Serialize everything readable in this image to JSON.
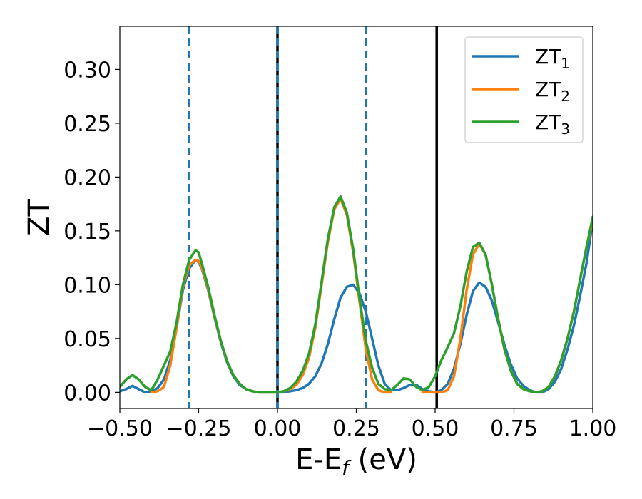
{
  "chart_data": {
    "type": "line",
    "xlabel": {
      "main": "E-E",
      "sub": "f",
      "suffix": " (eV)"
    },
    "ylabel": "ZT",
    "xlim": [
      -0.5,
      1.0
    ],
    "ylim": [
      -0.015,
      0.34
    ],
    "xticks": [
      -0.5,
      -0.25,
      0.0,
      0.25,
      0.5,
      0.75,
      1.0
    ],
    "xtick_labels": [
      "−0.50",
      "−0.25",
      "0.00",
      "0.25",
      "0.50",
      "0.75",
      "1.00"
    ],
    "yticks": [
      0.0,
      0.05,
      0.1,
      0.15,
      0.2,
      0.25,
      0.3
    ],
    "ytick_labels": [
      "0.00",
      "0.05",
      "0.10",
      "0.15",
      "0.20",
      "0.25",
      "0.30"
    ],
    "grid": false,
    "legend_position": "top-right",
    "vlines": [
      {
        "x": -0.28,
        "style": "dashed",
        "color": "#1f77b4"
      },
      {
        "x": 0.0,
        "style": "solid",
        "color": "#000000"
      },
      {
        "x": 0.0,
        "style": "dashed",
        "color": "#1f77b4"
      },
      {
        "x": 0.28,
        "style": "dashed",
        "color": "#1f77b4"
      },
      {
        "x": 0.505,
        "style": "solid",
        "color": "#000000"
      }
    ],
    "series": [
      {
        "name": "ZT",
        "sub": "1",
        "color": "#1f77b4",
        "x": [
          -0.5,
          -0.48,
          -0.46,
          -0.44,
          -0.42,
          -0.4,
          -0.38,
          -0.36,
          -0.34,
          -0.32,
          -0.3,
          -0.28,
          -0.26,
          -0.25,
          -0.24,
          -0.22,
          -0.2,
          -0.18,
          -0.16,
          -0.14,
          -0.12,
          -0.1,
          -0.08,
          -0.06,
          -0.04,
          -0.02,
          0.0,
          0.02,
          0.04,
          0.06,
          0.08,
          0.1,
          0.12,
          0.14,
          0.16,
          0.18,
          0.2,
          0.22,
          0.24,
          0.26,
          0.28,
          0.3,
          0.32,
          0.34,
          0.36,
          0.38,
          0.4,
          0.42,
          0.44,
          0.46,
          0.48,
          0.5,
          0.52,
          0.54,
          0.56,
          0.58,
          0.6,
          0.62,
          0.64,
          0.66,
          0.68,
          0.7,
          0.72,
          0.74,
          0.76,
          0.78,
          0.8,
          0.82,
          0.84,
          0.86,
          0.88,
          0.9,
          0.92,
          0.94,
          0.96,
          0.98,
          1.0
        ],
        "y": [
          0.001,
          0.003,
          0.006,
          0.003,
          0.0,
          0.001,
          0.004,
          0.012,
          0.03,
          0.06,
          0.095,
          0.115,
          0.123,
          0.121,
          0.115,
          0.095,
          0.07,
          0.047,
          0.028,
          0.015,
          0.007,
          0.003,
          0.001,
          0.0,
          0.0,
          0.0,
          0.0,
          0.0,
          0.001,
          0.002,
          0.004,
          0.008,
          0.015,
          0.027,
          0.045,
          0.068,
          0.088,
          0.098,
          0.1,
          0.092,
          0.075,
          0.05,
          0.025,
          0.008,
          0.002,
          0.002,
          0.004,
          0.007,
          0.007,
          0.003,
          0.001,
          0.0,
          0.002,
          0.008,
          0.022,
          0.045,
          0.072,
          0.094,
          0.102,
          0.098,
          0.085,
          0.065,
          0.044,
          0.026,
          0.013,
          0.006,
          0.002,
          0.0,
          0.0,
          0.003,
          0.01,
          0.022,
          0.04,
          0.062,
          0.09,
          0.12,
          0.16
        ]
      },
      {
        "name": "ZT",
        "sub": "2",
        "color": "#ff7f0e",
        "x": [
          -0.5,
          -0.48,
          -0.46,
          -0.44,
          -0.42,
          -0.4,
          -0.38,
          -0.36,
          -0.34,
          -0.32,
          -0.3,
          -0.28,
          -0.26,
          -0.25,
          -0.24,
          -0.22,
          -0.2,
          -0.18,
          -0.16,
          -0.14,
          -0.12,
          -0.1,
          -0.08,
          -0.06,
          -0.04,
          -0.02,
          0.0,
          0.02,
          0.04,
          0.06,
          0.08,
          0.1,
          0.12,
          0.14,
          0.16,
          0.18,
          0.2,
          0.22,
          0.24,
          0.26,
          0.28,
          0.3,
          0.32,
          0.34,
          0.36,
          0.38,
          0.4,
          0.42,
          0.44,
          0.46,
          0.48,
          0.5,
          0.52,
          0.54,
          0.56,
          0.58,
          0.6,
          0.62,
          0.64,
          0.66,
          0.68,
          0.7,
          0.72,
          0.74,
          0.76,
          0.78,
          0.8,
          0.82,
          0.84,
          0.86,
          0.88,
          0.9,
          0.92,
          0.94,
          0.96,
          0.98,
          1.0
        ],
        "y": [
          null,
          null,
          null,
          null,
          null,
          0.0,
          0.001,
          0.005,
          0.025,
          0.06,
          0.098,
          0.118,
          0.123,
          0.122,
          0.116,
          0.096,
          0.071,
          0.048,
          0.029,
          0.016,
          0.008,
          0.003,
          0.001,
          0.0,
          0.0,
          0.0,
          0.0,
          0.001,
          0.003,
          0.007,
          0.016,
          0.032,
          0.06,
          0.1,
          0.14,
          0.17,
          0.18,
          0.165,
          0.13,
          0.085,
          0.04,
          0.012,
          0.002,
          0.0,
          0.0,
          null,
          null,
          null,
          null,
          0.0,
          0.0,
          0.0,
          0.0,
          0.002,
          0.015,
          0.05,
          0.095,
          0.128,
          0.138,
          0.128,
          0.1,
          0.068,
          0.04,
          0.02,
          0.008,
          0.003,
          0.001,
          0.0,
          0.001,
          0.005,
          0.015,
          0.03,
          0.05,
          0.075,
          0.105,
          0.135,
          0.16
        ]
      },
      {
        "name": "ZT",
        "sub": "3",
        "color": "#2ca02c",
        "x": [
          -0.5,
          -0.48,
          -0.46,
          -0.44,
          -0.42,
          -0.4,
          -0.38,
          -0.36,
          -0.34,
          -0.32,
          -0.3,
          -0.28,
          -0.26,
          -0.25,
          -0.24,
          -0.22,
          -0.2,
          -0.18,
          -0.16,
          -0.14,
          -0.12,
          -0.1,
          -0.08,
          -0.06,
          -0.04,
          -0.02,
          0.0,
          0.02,
          0.04,
          0.06,
          0.08,
          0.1,
          0.12,
          0.14,
          0.16,
          0.18,
          0.2,
          0.22,
          0.24,
          0.26,
          0.28,
          0.3,
          0.32,
          0.34,
          0.36,
          0.38,
          0.4,
          0.42,
          0.44,
          0.46,
          0.48,
          0.5,
          0.52,
          0.54,
          0.56,
          0.58,
          0.6,
          0.62,
          0.64,
          0.66,
          0.68,
          0.7,
          0.72,
          0.74,
          0.76,
          0.78,
          0.8,
          0.82,
          0.84,
          0.86,
          0.88,
          0.9,
          0.92,
          0.94,
          0.96,
          0.98,
          1.0
        ],
        "y": [
          0.005,
          0.012,
          0.016,
          0.012,
          0.005,
          0.002,
          0.012,
          0.025,
          0.038,
          0.065,
          0.1,
          0.123,
          0.132,
          0.13,
          0.12,
          0.098,
          0.072,
          0.048,
          0.029,
          0.016,
          0.008,
          0.003,
          0.001,
          0.0,
          0.0,
          0.0,
          0.0,
          0.001,
          0.004,
          0.01,
          0.02,
          0.036,
          0.063,
          0.103,
          0.143,
          0.172,
          0.182,
          0.167,
          0.133,
          0.088,
          0.048,
          0.023,
          0.008,
          0.003,
          0.002,
          0.007,
          0.013,
          0.012,
          0.005,
          0.002,
          0.005,
          0.015,
          0.03,
          0.042,
          0.055,
          0.08,
          0.112,
          0.135,
          0.139,
          0.128,
          0.1,
          0.068,
          0.04,
          0.02,
          0.008,
          0.003,
          0.001,
          0.0,
          0.001,
          0.005,
          0.015,
          0.03,
          0.05,
          0.075,
          0.105,
          0.135,
          0.163
        ]
      }
    ]
  }
}
